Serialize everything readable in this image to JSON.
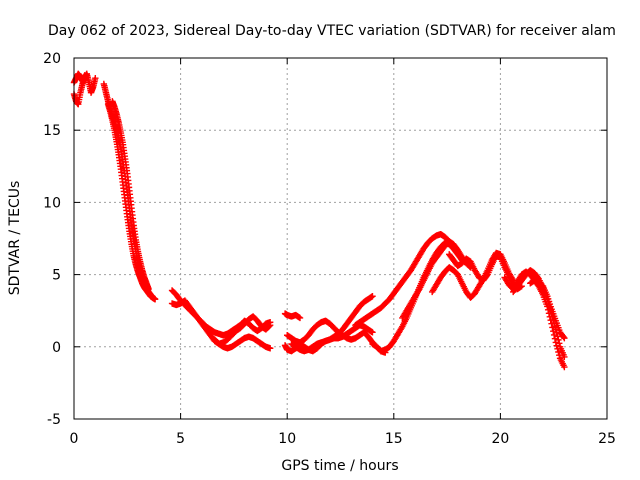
{
  "chart_data": {
    "type": "scatter",
    "title": "Day 062 of 2023, Sidereal Day-to-day VTEC variation (SDTVAR) for receiver alam",
    "xlabel": "GPS time / hours",
    "ylabel": "SDTVAR / TECUs",
    "xlim": [
      0,
      25
    ],
    "ylim": [
      -5,
      20
    ],
    "xticks": [
      0,
      5,
      10,
      15,
      20,
      25
    ],
    "yticks": [
      -5,
      0,
      5,
      10,
      15,
      20
    ],
    "grid": true,
    "marker": "plus",
    "color": "#ff0000",
    "series": [
      {
        "name": "SDTVAR",
        "tracks": [
          {
            "x": [
              0.0,
              0.1,
              0.2,
              0.3,
              0.4,
              0.5,
              0.6,
              0.7,
              0.8,
              0.9,
              1.0
            ],
            "y": [
              17.5,
              17.0,
              16.8,
              17.6,
              18.2,
              18.6,
              18.9,
              18.3,
              17.6,
              18.0,
              18.6
            ]
          },
          {
            "x": [
              0.0,
              0.1,
              0.2,
              0.3,
              0.4,
              0.5
            ],
            "y": [
              18.3,
              18.6,
              18.9,
              18.7,
              18.4,
              18.8
            ]
          },
          {
            "x": [
              1.4,
              1.5,
              1.6,
              1.7,
              1.8,
              1.9,
              2.0,
              2.1,
              2.2,
              2.3,
              2.4,
              2.5,
              2.6,
              2.7,
              2.8,
              2.9,
              3.0,
              3.1,
              3.2,
              3.3,
              3.4,
              3.5,
              3.6,
              3.7,
              3.8
            ],
            "y": [
              18.2,
              17.6,
              17.0,
              16.5,
              16.0,
              15.5,
              15.0,
              14.4,
              13.7,
              12.8,
              11.8,
              10.7,
              9.6,
              8.5,
              7.5,
              6.6,
              5.8,
              5.3,
              4.9,
              4.5,
              4.1,
              3.8,
              3.6,
              3.4,
              3.3
            ]
          },
          {
            "x": [
              1.6,
              1.7,
              1.8,
              1.9,
              2.0,
              2.1,
              2.2,
              2.3,
              2.4,
              2.5,
              2.6,
              2.7,
              2.8,
              2.9,
              3.0,
              3.1,
              3.2,
              3.3,
              3.4,
              3.5,
              3.6,
              3.7,
              3.8
            ],
            "y": [
              16.8,
              16.3,
              15.7,
              15.0,
              14.2,
              13.3,
              12.3,
              11.2,
              10.1,
              9.0,
              8.0,
              7.1,
              6.3,
              5.7,
              5.2,
              4.8,
              4.4,
              4.1,
              3.9,
              3.7,
              3.5,
              3.4,
              3.3
            ]
          },
          {
            "x": [
              1.8,
              1.9,
              2.0,
              2.1,
              2.2,
              2.3,
              2.4,
              2.5,
              2.6,
              2.7,
              2.8,
              2.9,
              3.0,
              3.1,
              3.2,
              3.3,
              3.4,
              3.5
            ],
            "y": [
              17.0,
              16.6,
              16.1,
              15.5,
              14.8,
              14.0,
              13.0,
              12.0,
              10.8,
              9.6,
              8.4,
              7.4,
              6.6,
              5.9,
              5.3,
              4.8,
              4.4,
              4.0
            ]
          },
          {
            "x": [
              4.6,
              4.8,
              5.0,
              5.2,
              5.4,
              5.6,
              5.8,
              6.0,
              6.2,
              6.4,
              6.6,
              6.8,
              7.0,
              7.2,
              7.4,
              7.6,
              7.8,
              8.0,
              8.2,
              8.4,
              8.6,
              8.8,
              9.0,
              9.2
            ],
            "y": [
              3.9,
              3.6,
              3.2,
              2.9,
              2.6,
              2.3,
              2.0,
              1.7,
              1.4,
              1.2,
              1.0,
              0.9,
              0.8,
              0.9,
              1.1,
              1.3,
              1.5,
              1.8,
              1.6,
              1.3,
              1.1,
              1.3,
              1.6,
              1.7
            ]
          },
          {
            "x": [
              4.6,
              4.8,
              5.0,
              5.2,
              5.4,
              5.6,
              5.8,
              6.0,
              6.2,
              6.4,
              6.6,
              6.8,
              7.0,
              7.2,
              7.4,
              7.6,
              7.8,
              8.0,
              8.2,
              8.4,
              8.6,
              8.8,
              9.0,
              9.2
            ],
            "y": [
              3.0,
              2.9,
              3.0,
              3.2,
              2.8,
              2.4,
              2.0,
              1.6,
              1.2,
              0.8,
              0.4,
              0.2,
              0.3,
              0.5,
              0.8,
              1.1,
              1.3,
              1.6,
              1.9,
              2.1,
              1.8,
              1.4,
              1.2,
              1.5
            ]
          },
          {
            "x": [
              6.6,
              6.8,
              7.0,
              7.2,
              7.4,
              7.6,
              7.8,
              8.0,
              8.2,
              8.4,
              8.6,
              8.8,
              9.0,
              9.2
            ],
            "y": [
              0.5,
              0.2,
              0.0,
              -0.1,
              0.0,
              0.2,
              0.4,
              0.6,
              0.7,
              0.6,
              0.4,
              0.2,
              0.0,
              -0.1
            ]
          },
          {
            "x": [
              9.9,
              10.0,
              10.2,
              10.4,
              10.6
            ],
            "y": [
              2.3,
              2.2,
              2.1,
              2.2,
              2.0
            ]
          },
          {
            "x": [
              9.9,
              10.0,
              10.2,
              10.4,
              10.6,
              10.8,
              11.0,
              11.2,
              11.4,
              11.6,
              11.8,
              12.0,
              12.2,
              12.4,
              12.6,
              12.8,
              13.0,
              13.2,
              13.4,
              13.6,
              13.8,
              14.0
            ],
            "y": [
              0.1,
              -0.2,
              -0.3,
              -0.1,
              0.1,
              0.0,
              -0.2,
              -0.3,
              -0.1,
              0.2,
              0.4,
              0.5,
              0.7,
              0.9,
              1.2,
              1.6,
              2.0,
              2.4,
              2.8,
              3.1,
              3.3,
              3.5
            ]
          },
          {
            "x": [
              10.0,
              10.2,
              10.4,
              10.6,
              10.8,
              11.0,
              11.2,
              11.4,
              11.6,
              11.8,
              12.0,
              12.2,
              12.4,
              12.6,
              12.8,
              13.0,
              13.2,
              13.4,
              13.6,
              13.8,
              14.0,
              14.2,
              14.4,
              14.6
            ],
            "y": [
              0.8,
              0.6,
              0.4,
              0.3,
              0.5,
              0.8,
              1.2,
              1.5,
              1.7,
              1.8,
              1.6,
              1.3,
              1.0,
              0.8,
              0.6,
              0.5,
              0.6,
              0.8,
              1.0,
              0.7,
              0.3,
              0.0,
              -0.3,
              -0.4
            ]
          },
          {
            "x": [
              10.2,
              10.4,
              10.6,
              10.8,
              11.0,
              11.2,
              11.4,
              11.6,
              11.8,
              12.0,
              12.2,
              12.4,
              12.6,
              12.8,
              13.0,
              13.2,
              13.4,
              13.6,
              13.8,
              14.0
            ],
            "y": [
              0.2,
              0.0,
              -0.2,
              -0.3,
              -0.2,
              0.0,
              0.2,
              0.3,
              0.4,
              0.5,
              0.6,
              0.6,
              0.7,
              0.9,
              1.1,
              1.3,
              1.5,
              1.4,
              1.2,
              1.0
            ]
          },
          {
            "x": [
              13.2,
              13.4,
              13.6,
              13.8,
              14.0,
              14.2,
              14.4,
              14.6,
              14.8,
              15.0,
              15.2,
              15.4,
              15.6,
              15.8,
              16.0,
              16.2,
              16.4,
              16.6,
              16.8,
              17.0,
              17.2,
              17.4,
              17.6,
              17.8
            ],
            "y": [
              1.5,
              1.7,
              1.9,
              2.1,
              2.3,
              2.5,
              2.7,
              3.0,
              3.3,
              3.7,
              4.1,
              4.5,
              4.9,
              5.3,
              5.8,
              6.3,
              6.8,
              7.2,
              7.5,
              7.7,
              7.8,
              7.6,
              7.3,
              7.0
            ]
          },
          {
            "x": [
              14.0,
              14.2,
              14.4,
              14.6,
              14.8,
              15.0,
              15.2,
              15.4,
              15.6,
              15.8,
              16.0,
              16.2,
              16.4,
              16.6,
              16.8,
              17.0,
              17.2,
              17.4,
              17.6,
              17.8,
              18.0,
              18.2,
              18.4
            ],
            "y": [
              0.2,
              0.0,
              -0.3,
              -0.2,
              0.0,
              0.4,
              0.9,
              1.4,
              2.0,
              2.7,
              3.4,
              4.1,
              4.8,
              5.4,
              6.0,
              6.5,
              6.9,
              7.2,
              7.1,
              6.8,
              6.4,
              6.0,
              5.8
            ]
          },
          {
            "x": [
              15.4,
              15.6,
              15.8,
              16.0,
              16.2,
              16.4,
              16.6,
              16.8,
              17.0,
              17.2,
              17.4,
              17.6,
              17.8,
              18.0,
              18.2,
              18.4,
              18.6
            ],
            "y": [
              2.0,
              2.5,
              3.0,
              3.5,
              4.0,
              4.6,
              5.2,
              5.8,
              6.2,
              6.6,
              7.0,
              7.3,
              7.1,
              6.7,
              6.2,
              5.8,
              5.5
            ]
          },
          {
            "x": [
              16.8,
              17.0,
              17.2,
              17.4,
              17.6,
              17.8,
              18.0,
              18.2,
              18.4,
              18.6,
              18.8,
              19.0,
              19.2,
              19.4,
              19.6,
              19.8,
              20.0,
              20.2,
              20.4,
              20.6
            ],
            "y": [
              3.8,
              4.3,
              4.8,
              5.2,
              5.5,
              5.3,
              5.0,
              4.4,
              3.8,
              3.4,
              3.7,
              4.2,
              4.7,
              5.3,
              6.0,
              6.5,
              6.4,
              5.8,
              5.1,
              4.6
            ]
          },
          {
            "x": [
              17.6,
              17.8,
              18.0,
              18.2,
              18.4,
              18.6,
              18.8,
              19.0,
              19.2,
              19.4,
              19.6,
              19.8,
              20.0,
              20.2,
              20.4,
              20.6,
              20.8,
              21.0
            ],
            "y": [
              6.4,
              6.0,
              5.6,
              5.8,
              6.1,
              5.9,
              5.3,
              4.8,
              4.6,
              5.0,
              5.7,
              6.3,
              6.2,
              5.5,
              4.9,
              4.4,
              4.0,
              4.2
            ]
          },
          {
            "x": [
              20.2,
              20.4,
              20.6,
              20.8,
              21.0,
              21.2,
              21.4,
              21.6,
              21.8,
              22.0,
              22.2,
              22.4,
              22.6,
              22.8,
              23.0
            ],
            "y": [
              4.8,
              4.3,
              4.0,
              4.5,
              5.0,
              5.2,
              5.0,
              4.6,
              4.4,
              4.2,
              3.5,
              2.6,
              1.8,
              1.0,
              0.6
            ]
          },
          {
            "x": [
              20.6,
              20.8,
              21.0,
              21.2,
              21.4,
              21.6,
              21.8,
              22.0,
              22.2,
              22.4,
              22.6,
              22.8,
              23.0
            ],
            "y": [
              3.8,
              4.2,
              4.6,
              5.0,
              5.3,
              5.1,
              4.7,
              4.1,
              3.3,
              2.3,
              1.2,
              0.0,
              -0.7
            ]
          },
          {
            "x": [
              21.4,
              21.6,
              21.8,
              22.0,
              22.2,
              22.4,
              22.6,
              22.8,
              23.0
            ],
            "y": [
              4.4,
              4.6,
              4.2,
              3.6,
              2.8,
              1.6,
              0.3,
              -0.8,
              -1.4
            ]
          }
        ]
      }
    ]
  }
}
